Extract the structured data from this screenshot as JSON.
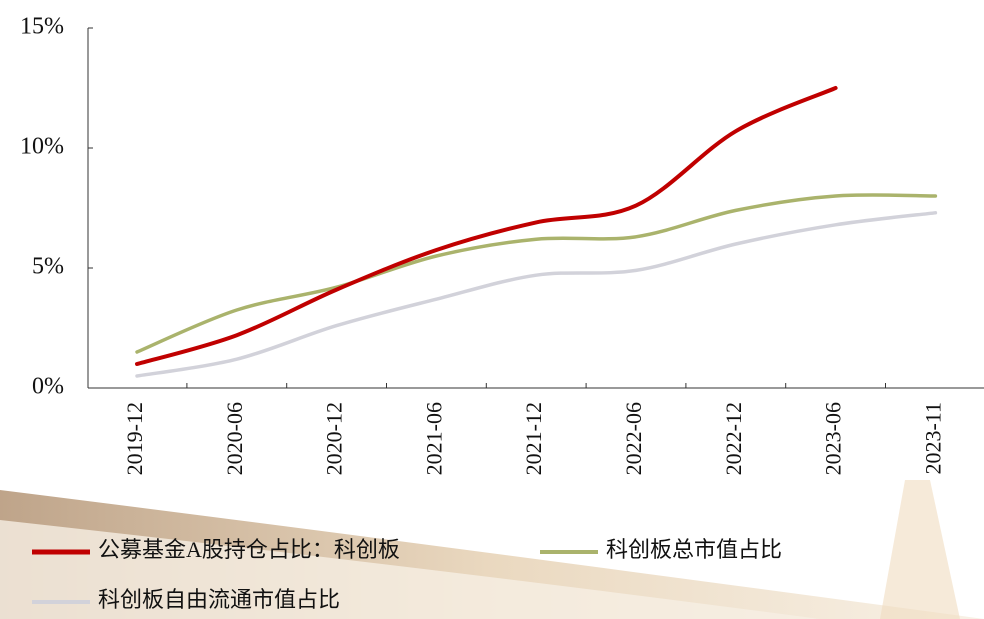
{
  "chart_data": {
    "type": "line",
    "categories": [
      "2019-12",
      "2020-06",
      "2020-12",
      "2021-06",
      "2021-12",
      "2022-06",
      "2022-12",
      "2023-06",
      "2023-11"
    ],
    "series": [
      {
        "name": "公募基金A股持仓占比：科创板",
        "color": "#c00000",
        "values": [
          1.0,
          2.2,
          4.1,
          5.75,
          6.9,
          7.6,
          10.7,
          12.5,
          null
        ]
      },
      {
        "name": "科创板总市值占比",
        "color": "#aab36c",
        "values": [
          1.5,
          3.25,
          4.2,
          5.5,
          6.2,
          6.3,
          7.4,
          8.0,
          8.0
        ]
      },
      {
        "name": "科创板自由流通市值占比",
        "color": "#d2d2da",
        "values": [
          0.5,
          1.2,
          2.6,
          3.7,
          4.7,
          4.9,
          6.0,
          6.8,
          7.3
        ]
      }
    ],
    "ylim": [
      0,
      15
    ],
    "yticks": [
      {
        "value": 0,
        "label": "0%"
      },
      {
        "value": 5,
        "label": "5%"
      },
      {
        "value": 10,
        "label": "10%"
      },
      {
        "value": 15,
        "label": "15%"
      }
    ]
  }
}
